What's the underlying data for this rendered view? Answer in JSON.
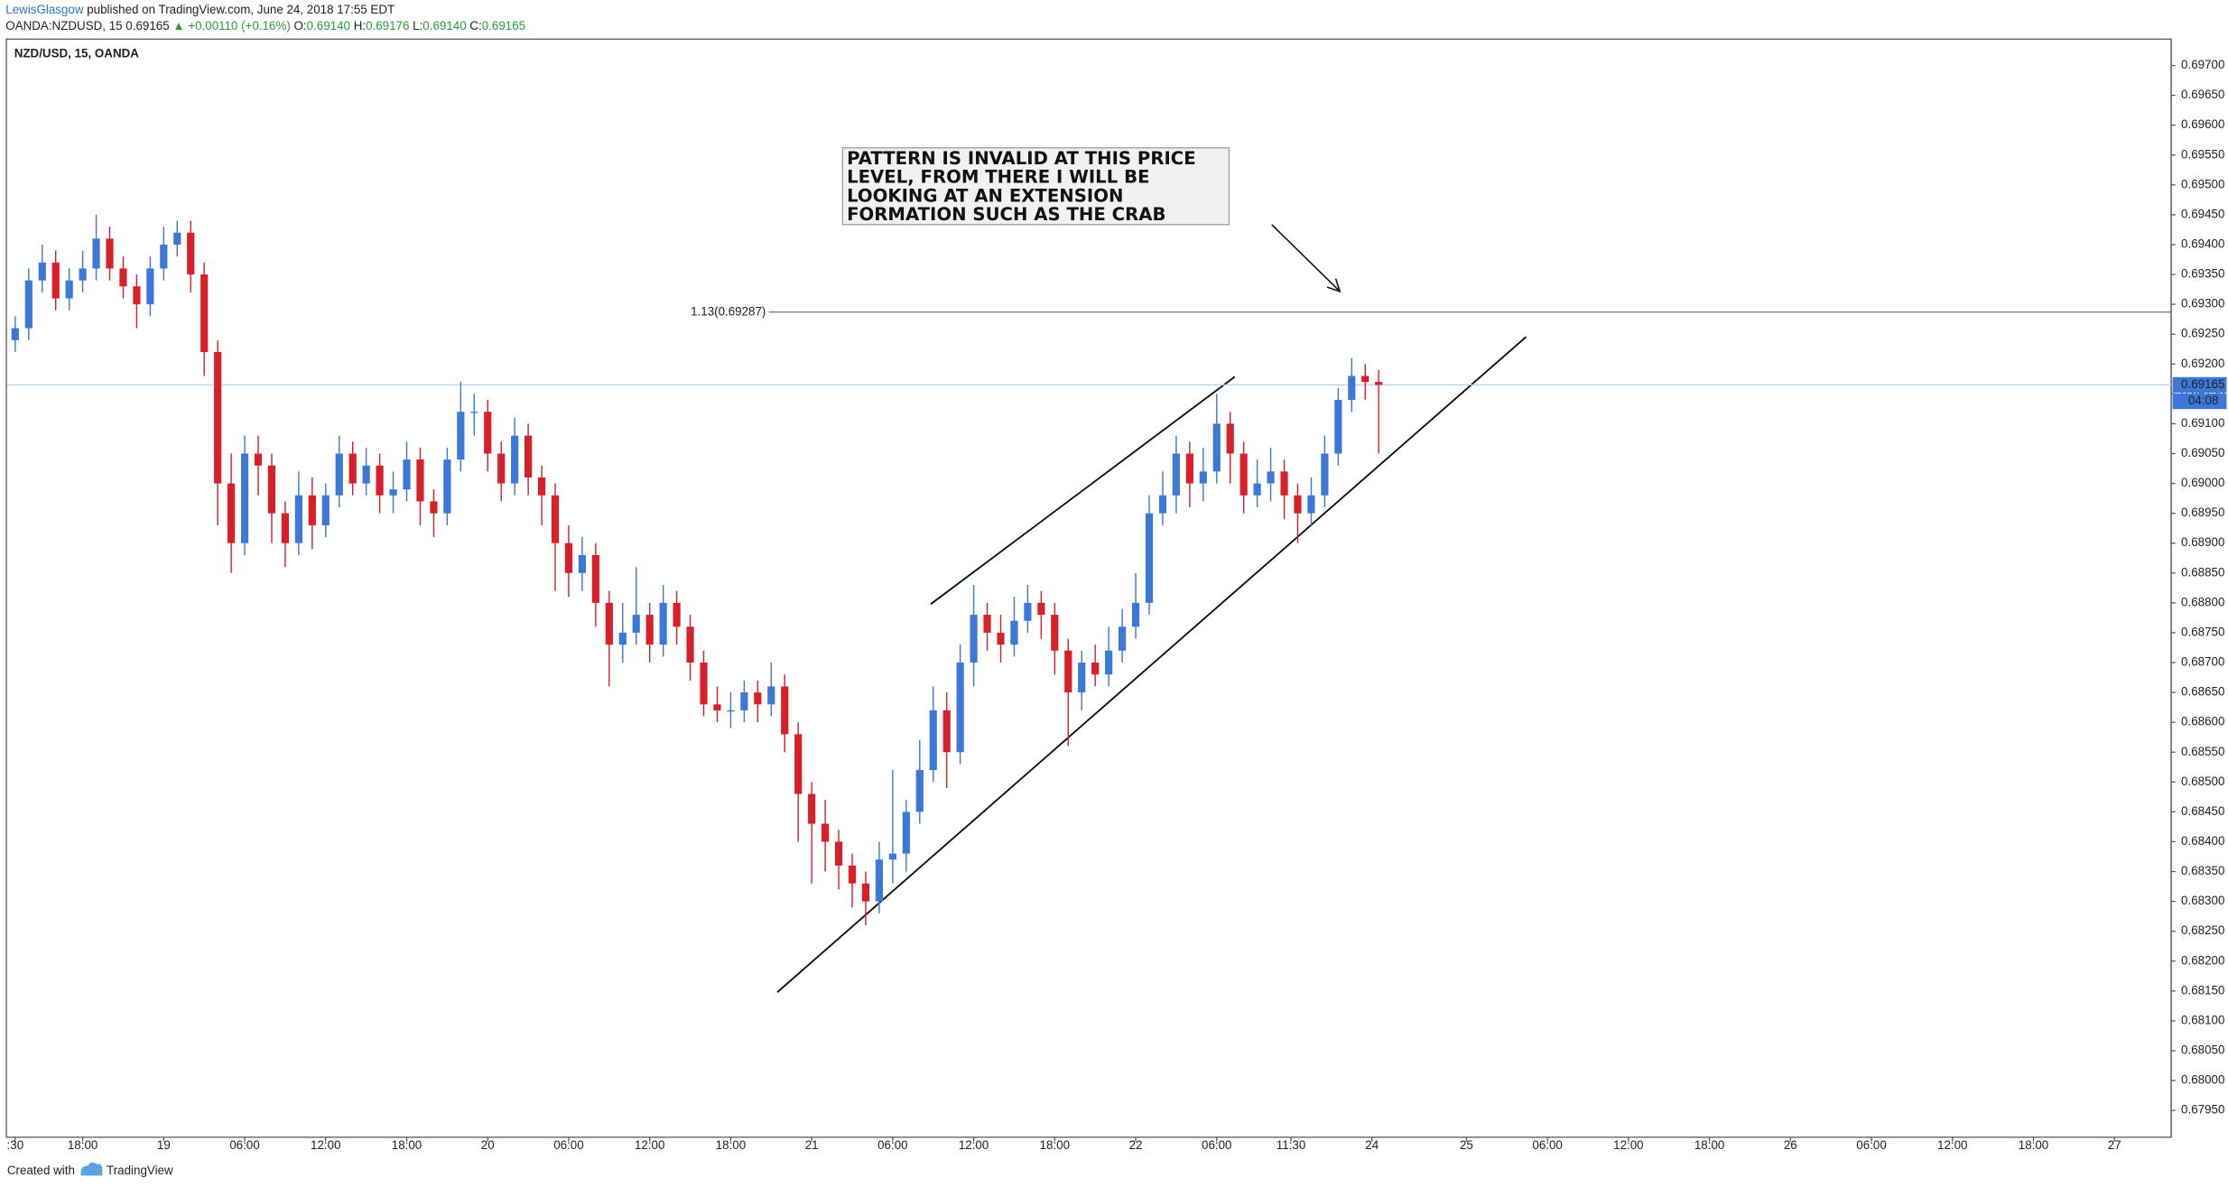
{
  "header": {
    "author": "LewisGlasgow",
    "published": " published on TradingView.com, June 24, 2018 17:55 EDT",
    "symbol": "OANDA:NZDUSD, 15",
    "price": "0.69165",
    "change": "▲ +0.00110 (+0.16%)",
    "o_label": "O:",
    "o": "0.69140",
    "h_label": "H:",
    "h": "0.69176",
    "l_label": "L:",
    "l": "0.69140",
    "c_label": "C:",
    "c": "0.69165"
  },
  "footer": {
    "created": "Created with",
    "brand": "TradingView"
  },
  "chart_data": {
    "type": "candlestick",
    "title": "NZD/USD, 15, OANDA",
    "up_color": "#3b78d8",
    "down_color": "#d9202a",
    "grid": false,
    "xlim": [
      12.4,
      172.7
    ],
    "ylim": [
      0.67905,
      0.69743
    ],
    "xticks": [
      {
        "value": 13,
        "label": ":30"
      },
      {
        "value": 18,
        "label": "18:00"
      },
      {
        "value": 24,
        "label": "19"
      },
      {
        "value": 30,
        "label": "06:00"
      },
      {
        "value": 36,
        "label": "12:00"
      },
      {
        "value": 42,
        "label": "18:00"
      },
      {
        "value": 48,
        "label": "20"
      },
      {
        "value": 54,
        "label": "06:00"
      },
      {
        "value": 60,
        "label": "12:00"
      },
      {
        "value": 66,
        "label": "18:00"
      },
      {
        "value": 72,
        "label": "21"
      },
      {
        "value": 78,
        "label": "06:00"
      },
      {
        "value": 84,
        "label": "12:00"
      },
      {
        "value": 90,
        "label": "18:00"
      },
      {
        "value": 96,
        "label": "22"
      },
      {
        "value": 102,
        "label": "06:00"
      },
      {
        "value": 107.5,
        "label": "11:30"
      },
      {
        "value": 113.5,
        "label": "24"
      },
      {
        "value": 120.5,
        "label": "25"
      },
      {
        "value": 126.5,
        "label": "06:00"
      },
      {
        "value": 132.5,
        "label": "12:00"
      },
      {
        "value": 138.5,
        "label": "18:00"
      },
      {
        "value": 144.5,
        "label": "26"
      },
      {
        "value": 150.5,
        "label": "06:00"
      },
      {
        "value": 156.5,
        "label": "12:00"
      },
      {
        "value": 162.5,
        "label": "18:00"
      },
      {
        "value": 168.5,
        "label": "27"
      }
    ],
    "yticks": [
      {
        "value": 0.697,
        "label": "0.69700"
      },
      {
        "value": 0.6965,
        "label": "0.69650"
      },
      {
        "value": 0.696,
        "label": "0.69600"
      },
      {
        "value": 0.6955,
        "label": "0.69550"
      },
      {
        "value": 0.695,
        "label": "0.69500"
      },
      {
        "value": 0.6945,
        "label": "0.69450"
      },
      {
        "value": 0.694,
        "label": "0.69400"
      },
      {
        "value": 0.6935,
        "label": "0.69350"
      },
      {
        "value": 0.693,
        "label": "0.69300"
      },
      {
        "value": 0.6925,
        "label": "0.69250"
      },
      {
        "value": 0.692,
        "label": "0.69200"
      },
      {
        "value": 0.6915,
        "label": "0.69150"
      },
      {
        "value": 0.691,
        "label": "0.69100"
      },
      {
        "value": 0.6905,
        "label": "0.69050"
      },
      {
        "value": 0.69,
        "label": "0.69000"
      },
      {
        "value": 0.6895,
        "label": "0.68950"
      },
      {
        "value": 0.689,
        "label": "0.68900"
      },
      {
        "value": 0.6885,
        "label": "0.68850"
      },
      {
        "value": 0.688,
        "label": "0.68800"
      },
      {
        "value": 0.6875,
        "label": "0.68750"
      },
      {
        "value": 0.687,
        "label": "0.68700"
      },
      {
        "value": 0.6865,
        "label": "0.68650"
      },
      {
        "value": 0.686,
        "label": "0.68600"
      },
      {
        "value": 0.6855,
        "label": "0.68550"
      },
      {
        "value": 0.685,
        "label": "0.68500"
      },
      {
        "value": 0.6845,
        "label": "0.68450"
      },
      {
        "value": 0.684,
        "label": "0.68400"
      },
      {
        "value": 0.6835,
        "label": "0.68350"
      },
      {
        "value": 0.683,
        "label": "0.68300"
      },
      {
        "value": 0.6825,
        "label": "0.68250"
      },
      {
        "value": 0.682,
        "label": "0.68200"
      },
      {
        "value": 0.6815,
        "label": "0.68150"
      },
      {
        "value": 0.681,
        "label": "0.68100"
      },
      {
        "value": 0.6805,
        "label": "0.68050"
      },
      {
        "value": 0.68,
        "label": "0.68000"
      },
      {
        "value": 0.6795,
        "label": "0.67950"
      }
    ],
    "last_price": {
      "value": 0.69165,
      "label": "0.69165"
    },
    "countdown": "04:08",
    "fib_level": {
      "value": 0.69287,
      "label": "1.13(0.69287)"
    },
    "annotation": [
      "PATTERN IS INVALID AT THIS PRICE",
      "LEVEL, FROM THERE I WILL BE",
      "LOOKING AT AN EXTENSION",
      "FORMATION SUCH AS THE CRAB"
    ],
    "candles": [
      [
        13,
        0.6924,
        0.6928,
        0.6922,
        0.6926
      ],
      [
        14,
        0.6926,
        0.6936,
        0.6924,
        0.6934
      ],
      [
        15,
        0.6934,
        0.694,
        0.6932,
        0.6937
      ],
      [
        16,
        0.6937,
        0.6939,
        0.6929,
        0.6931
      ],
      [
        17,
        0.6931,
        0.6936,
        0.6929,
        0.6934
      ],
      [
        18,
        0.6934,
        0.6939,
        0.6932,
        0.6936
      ],
      [
        19,
        0.6936,
        0.6945,
        0.6934,
        0.6941
      ],
      [
        20,
        0.6941,
        0.6943,
        0.6934,
        0.6936
      ],
      [
        21,
        0.6936,
        0.6938,
        0.6931,
        0.6933
      ],
      [
        22,
        0.6933,
        0.6935,
        0.6926,
        0.693
      ],
      [
        23,
        0.693,
        0.6938,
        0.6928,
        0.6936
      ],
      [
        24,
        0.6936,
        0.6943,
        0.6934,
        0.694
      ],
      [
        25,
        0.694,
        0.6944,
        0.6938,
        0.6942
      ],
      [
        26,
        0.6942,
        0.6944,
        0.6932,
        0.6935
      ],
      [
        27,
        0.6935,
        0.6937,
        0.6918,
        0.6922
      ],
      [
        28,
        0.6922,
        0.6924,
        0.6893,
        0.69
      ],
      [
        29,
        0.69,
        0.6905,
        0.6885,
        0.689
      ],
      [
        30,
        0.689,
        0.6908,
        0.6888,
        0.6905
      ],
      [
        31,
        0.6905,
        0.6908,
        0.6898,
        0.6903
      ],
      [
        32,
        0.6903,
        0.6905,
        0.689,
        0.6895
      ],
      [
        33,
        0.6895,
        0.6897,
        0.6886,
        0.689
      ],
      [
        34,
        0.689,
        0.6902,
        0.6888,
        0.6898
      ],
      [
        35,
        0.6898,
        0.6901,
        0.6889,
        0.6893
      ],
      [
        36,
        0.6893,
        0.69,
        0.6891,
        0.6898
      ],
      [
        37,
        0.6898,
        0.6908,
        0.6896,
        0.6905
      ],
      [
        38,
        0.6905,
        0.6907,
        0.6898,
        0.69
      ],
      [
        39,
        0.69,
        0.6906,
        0.6898,
        0.6903
      ],
      [
        40,
        0.6903,
        0.6905,
        0.6895,
        0.6898
      ],
      [
        41,
        0.6898,
        0.6902,
        0.6895,
        0.6899
      ],
      [
        42,
        0.6899,
        0.6907,
        0.6897,
        0.6904
      ],
      [
        43,
        0.6904,
        0.6906,
        0.6893,
        0.6897
      ],
      [
        44,
        0.6897,
        0.6899,
        0.6891,
        0.6895
      ],
      [
        45,
        0.6895,
        0.6906,
        0.6893,
        0.6904
      ],
      [
        46,
        0.6904,
        0.6917,
        0.6902,
        0.6912
      ],
      [
        47,
        0.6912,
        0.6915,
        0.6908,
        0.6912
      ],
      [
        48,
        0.6912,
        0.6914,
        0.6902,
        0.6905
      ],
      [
        49,
        0.6905,
        0.6907,
        0.6897,
        0.69
      ],
      [
        50,
        0.69,
        0.6911,
        0.6898,
        0.6908
      ],
      [
        51,
        0.6908,
        0.691,
        0.6898,
        0.6901
      ],
      [
        52,
        0.6901,
        0.6903,
        0.6893,
        0.6898
      ],
      [
        53,
        0.6898,
        0.69,
        0.6882,
        0.689
      ],
      [
        54,
        0.689,
        0.6893,
        0.6881,
        0.6885
      ],
      [
        55,
        0.6885,
        0.6891,
        0.6882,
        0.6888
      ],
      [
        56,
        0.6888,
        0.689,
        0.6876,
        0.688
      ],
      [
        57,
        0.688,
        0.6882,
        0.6866,
        0.6873
      ],
      [
        58,
        0.6873,
        0.688,
        0.687,
        0.6875
      ],
      [
        59,
        0.6875,
        0.6886,
        0.6873,
        0.6878
      ],
      [
        60,
        0.6878,
        0.688,
        0.687,
        0.6873
      ],
      [
        61,
        0.6873,
        0.6883,
        0.6871,
        0.688
      ],
      [
        62,
        0.688,
        0.6882,
        0.6873,
        0.6876
      ],
      [
        63,
        0.6876,
        0.6878,
        0.6867,
        0.687
      ],
      [
        64,
        0.687,
        0.6872,
        0.6861,
        0.6863
      ],
      [
        65,
        0.6863,
        0.6866,
        0.686,
        0.6862
      ],
      [
        66,
        0.6862,
        0.6865,
        0.6859,
        0.6862
      ],
      [
        67,
        0.6862,
        0.6867,
        0.686,
        0.6865
      ],
      [
        68,
        0.6865,
        0.6867,
        0.686,
        0.6863
      ],
      [
        69,
        0.6863,
        0.687,
        0.6861,
        0.6866
      ],
      [
        70,
        0.6866,
        0.6868,
        0.6855,
        0.6858
      ],
      [
        71,
        0.6858,
        0.686,
        0.684,
        0.6848
      ],
      [
        72,
        0.6848,
        0.685,
        0.6833,
        0.6843
      ],
      [
        73,
        0.6843,
        0.6847,
        0.6835,
        0.684
      ],
      [
        74,
        0.684,
        0.6842,
        0.6832,
        0.6836
      ],
      [
        75,
        0.6836,
        0.6838,
        0.6829,
        0.6833
      ],
      [
        76,
        0.6833,
        0.6835,
        0.6826,
        0.683
      ],
      [
        77,
        0.683,
        0.684,
        0.6828,
        0.6837
      ],
      [
        78,
        0.6837,
        0.6852,
        0.6833,
        0.6838
      ],
      [
        79,
        0.6838,
        0.6847,
        0.6835,
        0.6845
      ],
      [
        80,
        0.6845,
        0.6857,
        0.6843,
        0.6852
      ],
      [
        81,
        0.6852,
        0.6866,
        0.685,
        0.6862
      ],
      [
        82,
        0.6862,
        0.6865,
        0.6849,
        0.6855
      ],
      [
        83,
        0.6855,
        0.6873,
        0.6853,
        0.687
      ],
      [
        84,
        0.687,
        0.6883,
        0.6866,
        0.6878
      ],
      [
        85,
        0.6878,
        0.688,
        0.6872,
        0.6875
      ],
      [
        86,
        0.6875,
        0.6878,
        0.687,
        0.6873
      ],
      [
        87,
        0.6873,
        0.6881,
        0.6871,
        0.6877
      ],
      [
        88,
        0.6877,
        0.6883,
        0.6875,
        0.688
      ],
      [
        89,
        0.688,
        0.6882,
        0.6874,
        0.6878
      ],
      [
        90,
        0.6878,
        0.688,
        0.6868,
        0.6872
      ],
      [
        91,
        0.6872,
        0.6874,
        0.6856,
        0.6865
      ],
      [
        92,
        0.6865,
        0.6872,
        0.6862,
        0.687
      ],
      [
        93,
        0.687,
        0.6873,
        0.6866,
        0.6868
      ],
      [
        94,
        0.6868,
        0.6876,
        0.6866,
        0.6872
      ],
      [
        95,
        0.6872,
        0.6879,
        0.687,
        0.6876
      ],
      [
        96,
        0.6876,
        0.6885,
        0.6874,
        0.688
      ],
      [
        97,
        0.688,
        0.6898,
        0.6878,
        0.6895
      ],
      [
        98,
        0.6895,
        0.6902,
        0.6893,
        0.6898
      ],
      [
        99,
        0.6898,
        0.6908,
        0.6895,
        0.6905
      ],
      [
        100,
        0.6905,
        0.6907,
        0.6896,
        0.69
      ],
      [
        101,
        0.69,
        0.6906,
        0.6897,
        0.6902
      ],
      [
        102,
        0.6902,
        0.6915,
        0.69,
        0.691
      ],
      [
        103,
        0.691,
        0.6912,
        0.69,
        0.6905
      ],
      [
        104,
        0.6905,
        0.6907,
        0.6895,
        0.6898
      ],
      [
        105,
        0.6898,
        0.6904,
        0.6896,
        0.69
      ],
      [
        106,
        0.69,
        0.6906,
        0.6897,
        0.6902
      ],
      [
        107,
        0.6902,
        0.6904,
        0.6894,
        0.6898
      ],
      [
        108,
        0.6898,
        0.69,
        0.689,
        0.6895
      ],
      [
        109,
        0.6895,
        0.6901,
        0.6893,
        0.6898
      ],
      [
        110,
        0.6898,
        0.6908,
        0.6896,
        0.6905
      ],
      [
        111,
        0.6905,
        0.6916,
        0.6903,
        0.6914
      ],
      [
        112,
        0.6914,
        0.6921,
        0.6912,
        0.6918
      ],
      [
        113,
        0.6918,
        0.692,
        0.6914,
        0.6917
      ],
      [
        114,
        0.6917,
        0.6919,
        0.6905,
        0.69165
      ]
    ]
  }
}
